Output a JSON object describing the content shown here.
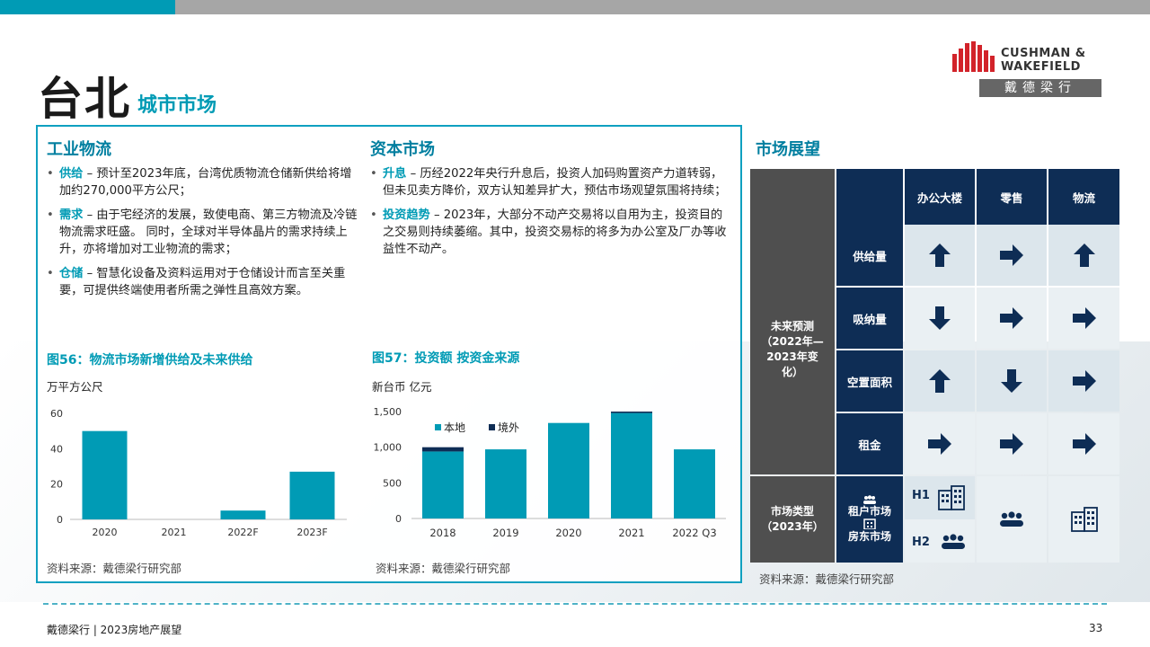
{
  "header": {
    "title": "台北",
    "subtitle": "城市市场"
  },
  "logo": {
    "line1": "CUSHMAN &",
    "line2": "WAKEFIELD",
    "cn": "戴德梁行"
  },
  "left": {
    "industrial": {
      "heading": "工业物流",
      "items": [
        {
          "kw": "供给",
          "text": " – 预计至2023年底，台湾优质物流仓储新供给将增加约270,000平方公尺；"
        },
        {
          "kw": "需求",
          "text": " – 由于宅经济的发展，致使电商、第三方物流及冷链物流需求旺盛。 同时，全球对半导体晶片的需求持续上升，亦将增加对工业物流的需求；"
        },
        {
          "kw": "仓储",
          "text": " – 智慧化设备及资料运用对于仓储设计而言至关重要，可提供终端使用者所需之弹性且高效方案。"
        }
      ]
    },
    "capital": {
      "heading": "资本市场",
      "items": [
        {
          "kw": "升息",
          "text": " – 历经2022年央行升息后，投资人加码购置资产力道转弱，但未见卖方降价，双方认知差异扩大，预估市场观望氛围将持续；"
        },
        {
          "kw": "投资趋势",
          "text": " – 2023年，大部分不动产交易将以自用为主，投资目的之交易则持续萎缩。其中，投资交易标的将多为办公室及厂办等收益性不动产。"
        }
      ]
    },
    "fig56": {
      "title": "图56：物流市场新增供给及未来供给",
      "unit": "万平方公尺",
      "source": "资料来源：戴德梁行研究部"
    },
    "fig57": {
      "title": "图57：投资额 按资金来源",
      "unit": "新台币 亿元",
      "source": "资料来源：戴德梁行研究部"
    }
  },
  "chart_data": [
    {
      "type": "bar",
      "title": "图56：物流市场新增供给及未来供给",
      "ylabel": "万平方公尺",
      "categories": [
        "2020",
        "2021",
        "2022F",
        "2023F"
      ],
      "values": [
        50,
        0,
        5,
        27
      ],
      "ylim": [
        0,
        60
      ],
      "yticks": [
        "0",
        "20",
        "40",
        "60"
      ],
      "grid": false,
      "color": "#009bb5"
    },
    {
      "type": "bar",
      "stacked": true,
      "title": "图57：投资额 按资金来源",
      "ylabel": "新台币 亿元",
      "categories": [
        "2018",
        "2019",
        "2020",
        "2021",
        "2022 Q3"
      ],
      "series": [
        {
          "name": "本地",
          "values": [
            940,
            970,
            1340,
            1480,
            970
          ],
          "color": "#009bb5"
        },
        {
          "name": "境外",
          "values": [
            60,
            0,
            0,
            20,
            0
          ],
          "color": "#0e2d55"
        }
      ],
      "ylim": [
        0,
        1500
      ],
      "yticks": [
        "0",
        "500",
        "1,000",
        "1,500"
      ],
      "legend": "top-left",
      "grid": false
    }
  ],
  "outlook": {
    "heading": "市场展望",
    "columns": [
      "办公大楼",
      "零售",
      "物流"
    ],
    "group_label": "未来预测（2022年—2023年变化）",
    "rows": [
      {
        "label": "供给量",
        "arrows": [
          "up",
          "right",
          "up"
        ]
      },
      {
        "label": "吸纳量",
        "arrows": [
          "down",
          "right",
          "right"
        ]
      },
      {
        "label": "空置面积",
        "arrows": [
          "up",
          "down",
          "right"
        ]
      },
      {
        "label": "租金",
        "arrows": [
          "right",
          "right",
          "right"
        ]
      }
    ],
    "market_type_label": "市场类型（2023年）",
    "legend_tenant": "租户市场",
    "legend_landlord": "房东市场",
    "h1": "H1",
    "h2": "H2",
    "icons": {
      "office_h1": "building-icon",
      "office_h2": "people-icon",
      "retail": "people-icon",
      "logistics": "building-icon"
    },
    "source": "资料来源：戴德梁行研究部"
  },
  "footer": {
    "text": "戴德梁行 | 2023房地产展望",
    "page": "33"
  },
  "colors": {
    "teal": "#009bb5",
    "navy": "#0e2d55",
    "grey": "#4f4f4f"
  }
}
